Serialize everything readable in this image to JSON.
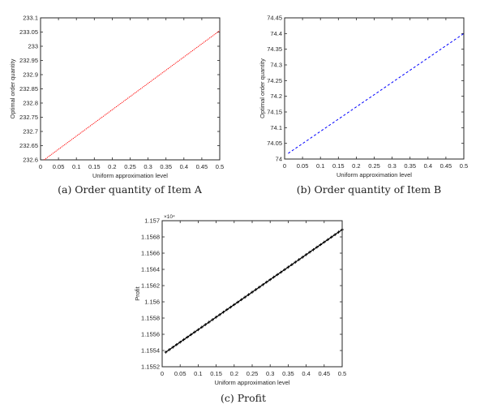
{
  "chart_data": [
    {
      "id": "a",
      "type": "line",
      "caption": "(a) Order quantity of Item A",
      "xlabel": "Uniform approximation level",
      "ylabel": "Optimal order quantity",
      "xlim": [
        0,
        0.5
      ],
      "ylim": [
        232.6,
        233.1
      ],
      "xticks": [
        "0",
        "0.05",
        "0.1",
        "0.15",
        "0.2",
        "0.25",
        "0.3",
        "0.35",
        "0.4",
        "0.45",
        "0.5"
      ],
      "yticks": [
        "232.6",
        "232.65",
        "232.7",
        "232.75",
        "232.8",
        "232.85",
        "232.9",
        "232.95",
        "233",
        "233.05",
        "233.1"
      ],
      "grid": false,
      "series": [
        {
          "name": "Item A",
          "color": "#ff0000",
          "style": "dotted",
          "x": [
            0.01,
            0.5
          ],
          "values": [
            232.6,
            233.055
          ]
        }
      ]
    },
    {
      "id": "b",
      "type": "line",
      "caption": "(b) Order quantity of Item B",
      "xlabel": "Uniform approximation level",
      "ylabel": "Optimal order quantity",
      "xlim": [
        0,
        0.5
      ],
      "ylim": [
        74,
        74.45
      ],
      "xticks": [
        "0",
        "0.05",
        "0.1",
        "0.15",
        "0.2",
        "0.25",
        "0.3",
        "0.35",
        "0.4",
        "0.45",
        "0.5"
      ],
      "yticks": [
        "74",
        "74.05",
        "74.1",
        "74.15",
        "74.2",
        "74.25",
        "74.3",
        "74.35",
        "74.4",
        "74.45"
      ],
      "grid": false,
      "series": [
        {
          "name": "Item B",
          "color": "#0000ff",
          "style": "dashed",
          "x": [
            0.01,
            0.5
          ],
          "values": [
            74.018,
            74.4
          ]
        }
      ]
    },
    {
      "id": "c",
      "type": "line",
      "caption": "(c) Profit",
      "xlabel": "Uniform approximation level",
      "ylabel": "Profit",
      "y_multiplier": "×10⁴",
      "xlim": [
        0,
        0.5
      ],
      "ylim": [
        1.1552,
        1.157
      ],
      "xticks": [
        "0",
        "0.05",
        "0.1",
        "0.15",
        "0.2",
        "0.25",
        "0.3",
        "0.35",
        "0.4",
        "0.45",
        "0.5"
      ],
      "yticks": [
        "1.1552",
        "1.1554",
        "1.1556",
        "1.1558",
        "1.156",
        "1.1562",
        "1.1564",
        "1.1566",
        "1.1568",
        "1.157"
      ],
      "grid": false,
      "series": [
        {
          "name": "Profit",
          "color": "#000000",
          "style": "solid-plus-markers",
          "x_start": 0.01,
          "x_end": 0.5,
          "x_step": 0.01,
          "values_endpoints": [
            1.15538,
            1.15689
          ]
        }
      ]
    }
  ]
}
